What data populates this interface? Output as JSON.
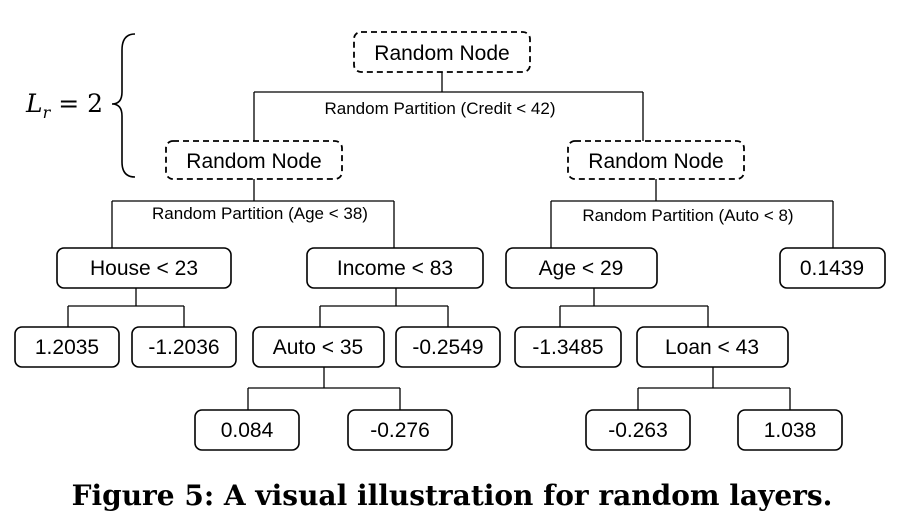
{
  "annotation": {
    "symbol": "L",
    "subscript": "r",
    "rest": " = 2"
  },
  "nodes": {
    "root": "Random Node",
    "left": "Random Node",
    "right": "Random Node",
    "house": "House < 23",
    "income": "Income < 83",
    "age": "Age < 29",
    "leaf_01439": "0.1439",
    "leaf_12035": "1.2035",
    "leaf_n12036": "-1.2036",
    "auto": "Auto < 35",
    "leaf_n02549": "-0.2549",
    "leaf_n13485": "-1.3485",
    "loan": "Loan < 43",
    "leaf_0084": "0.084",
    "leaf_n0276": "-0.276",
    "leaf_n0263": "-0.263",
    "leaf_1038": "1.038"
  },
  "partitions": {
    "credit": "Random Partition (Credit < 42)",
    "age": "Random Partition (Age < 38)",
    "auto": "Random Partition (Auto < 8)"
  },
  "caption": "Figure 5: A visual illustration for random layers."
}
